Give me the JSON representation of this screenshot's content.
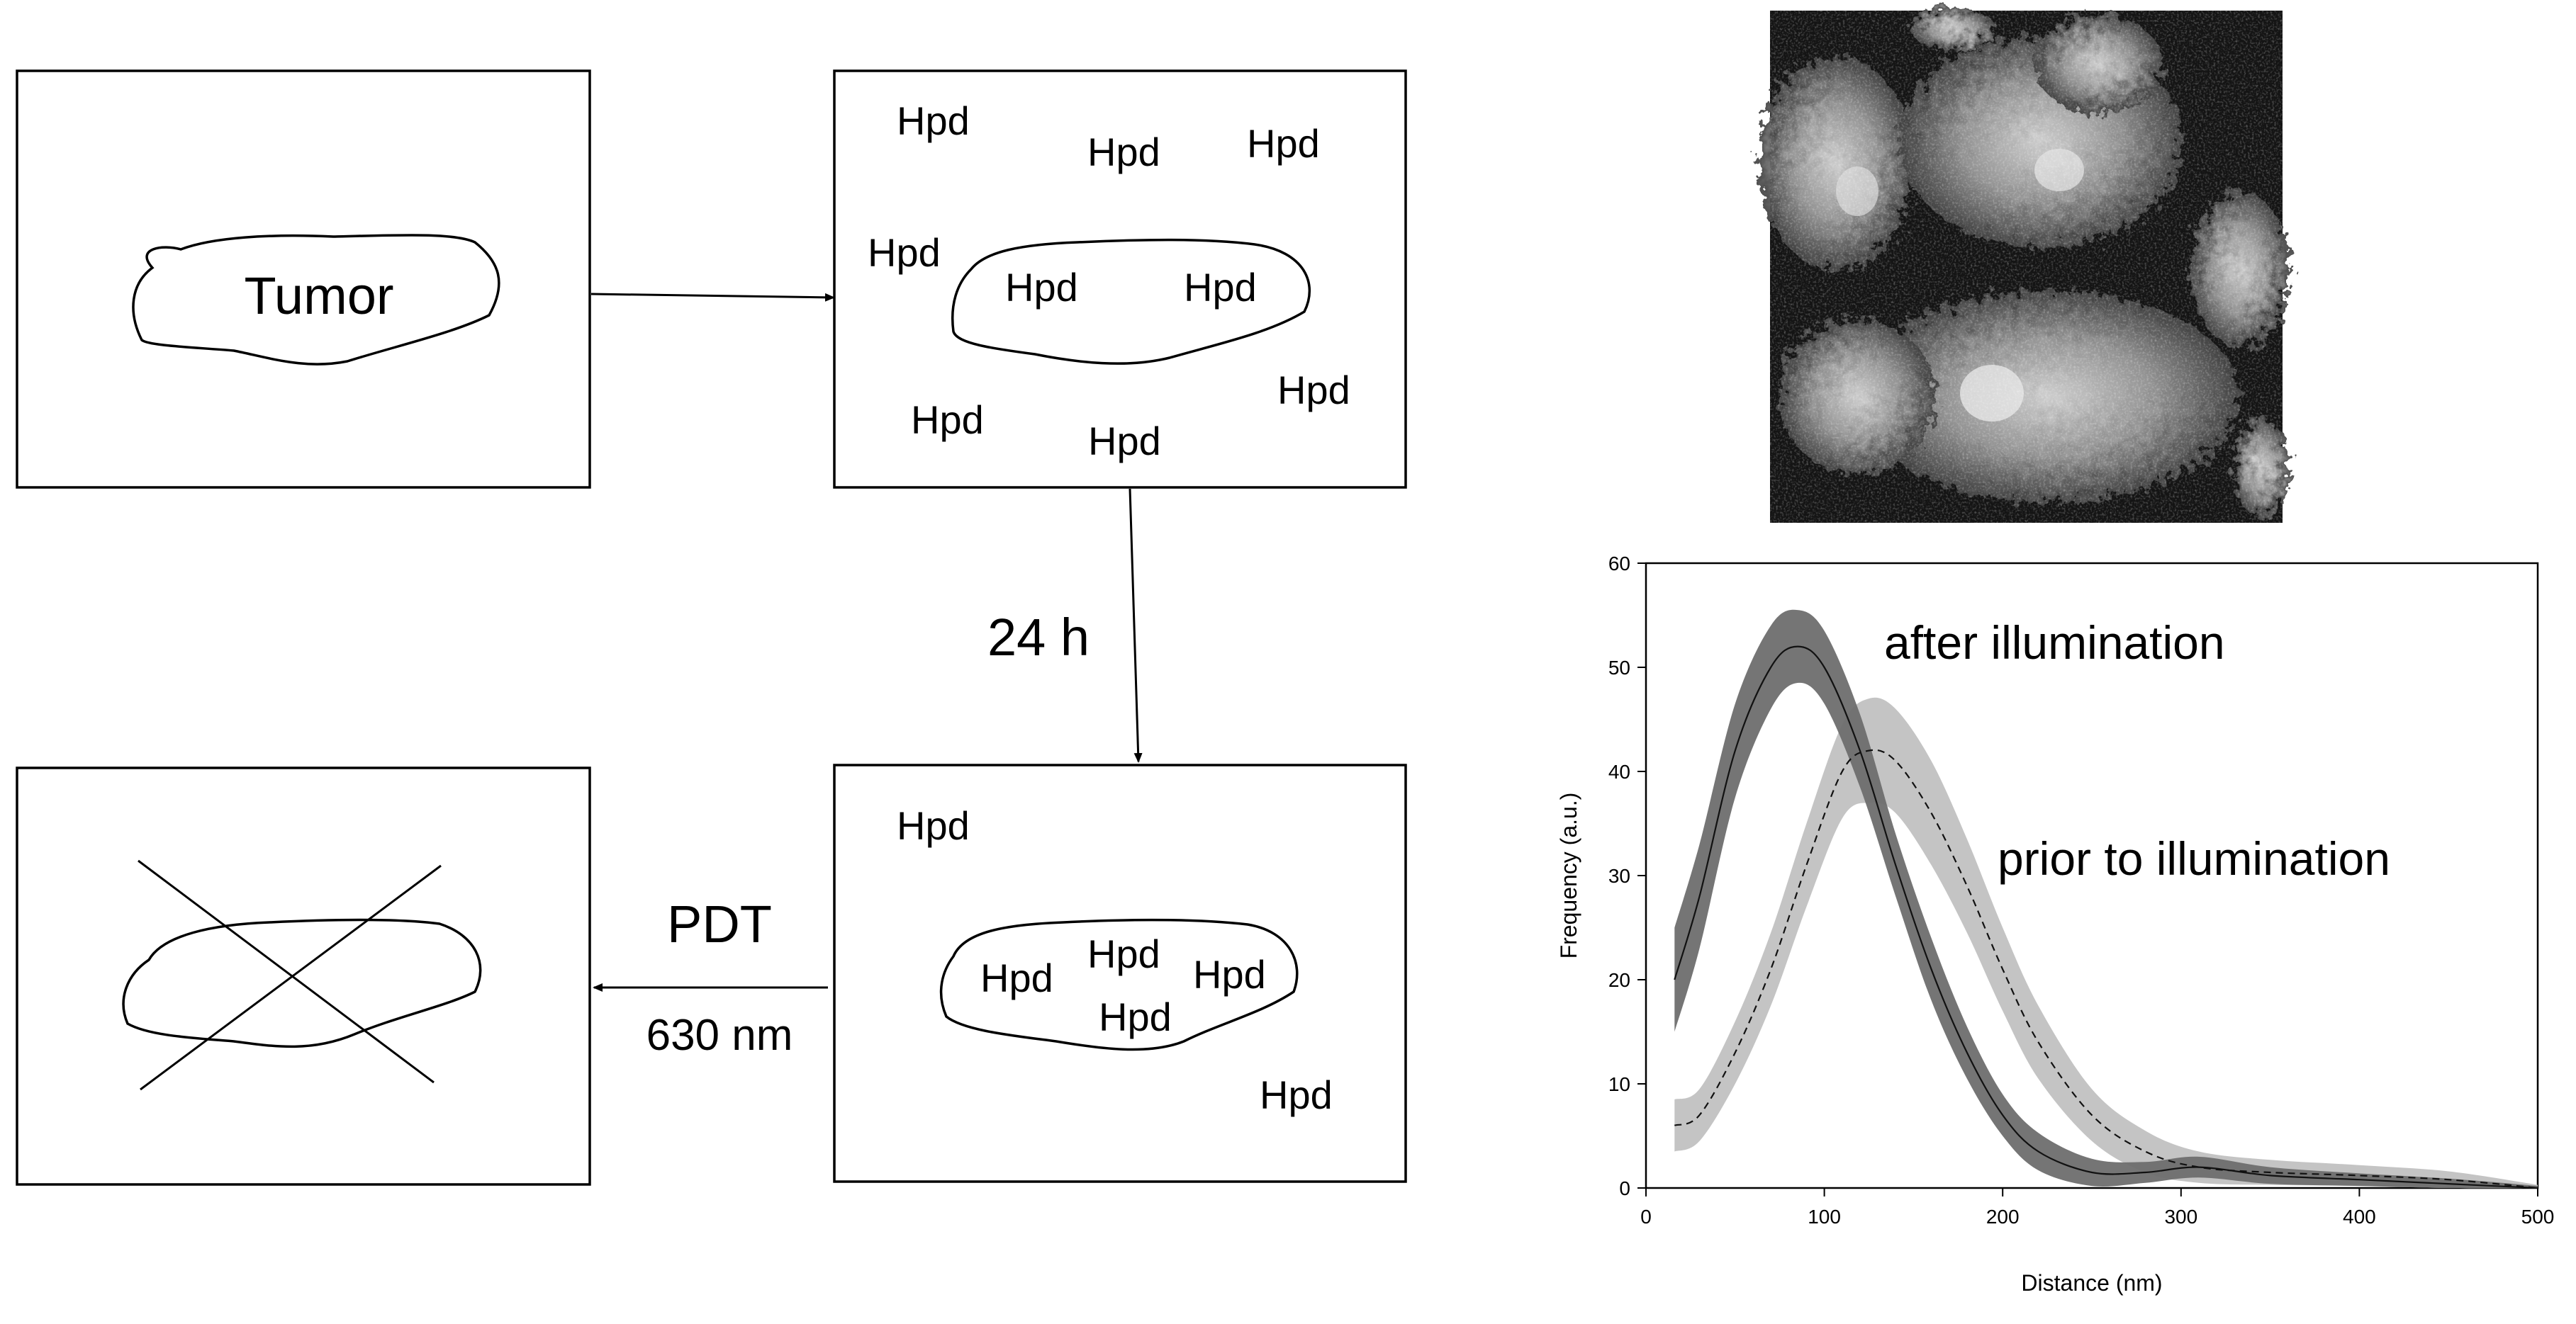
{
  "diagram": {
    "panel1": {
      "label": "Tumor"
    },
    "panel2": {
      "labels": [
        "Hpd",
        "Hpd",
        "Hpd",
        "Hpd",
        "Hpd",
        "Hpd",
        "Hpd",
        "Hpd",
        "Hpd"
      ]
    },
    "arrow_down_label": "24 h",
    "panel3": {
      "labels": [
        "Hpd",
        "Hpd",
        "Hpd",
        "Hpd",
        "Hpd",
        "Hpd"
      ]
    },
    "arrow_left_label_top": "PDT",
    "arrow_left_label_bottom": "630 nm"
  },
  "micrograph": {
    "type": "grayscale fluorescence micrograph",
    "description_icon": "cell-micrograph-image"
  },
  "chart_data": {
    "type": "line",
    "xlabel": "Distance (nm)",
    "ylabel": "Frequency (a.u.)",
    "xlim": [
      0,
      500
    ],
    "ylim": [
      0,
      60
    ],
    "xticks": [
      0,
      100,
      200,
      300,
      400,
      500
    ],
    "yticks": [
      0,
      10,
      20,
      30,
      40,
      50,
      60
    ],
    "grid": false,
    "series": [
      {
        "name": "after illumination",
        "line_style": "solid",
        "band_color": "#6e6e6e",
        "x": [
          16,
          30,
          50,
          70,
          85,
          100,
          120,
          140,
          160,
          180,
          200,
          220,
          250,
          280,
          310,
          350,
          400,
          450,
          500
        ],
        "y": [
          20,
          28,
          42,
          50,
          52,
          50,
          42,
          31,
          21,
          13,
          7,
          3.5,
          1.5,
          1.5,
          2,
          1.2,
          0.8,
          0.4,
          0
        ],
        "band": [
          5,
          5,
          4.5,
          4,
          3.5,
          3.5,
          3.5,
          3,
          3,
          2.5,
          2,
          1.8,
          1.3,
          1,
          1,
          0.8,
          0.6,
          0.5,
          0.2
        ]
      },
      {
        "name": "prior to illumination",
        "line_style": "dashed",
        "band_color": "#c4c4c4",
        "x": [
          16,
          30,
          50,
          70,
          90,
          110,
          125,
          140,
          160,
          180,
          200,
          220,
          250,
          280,
          310,
          350,
          400,
          450,
          500
        ],
        "y": [
          6,
          7,
          13,
          21,
          31,
          40,
          42,
          41,
          36,
          29,
          21,
          14,
          7,
          3.5,
          2,
          1.5,
          1.2,
          0.8,
          0
        ],
        "band": [
          2.5,
          2.5,
          3,
          3.5,
          4,
          4.5,
          5,
          5,
          5,
          4.5,
          4,
          3.5,
          2.5,
          2,
          1.5,
          1.2,
          1,
          0.8,
          0.3
        ]
      }
    ]
  }
}
